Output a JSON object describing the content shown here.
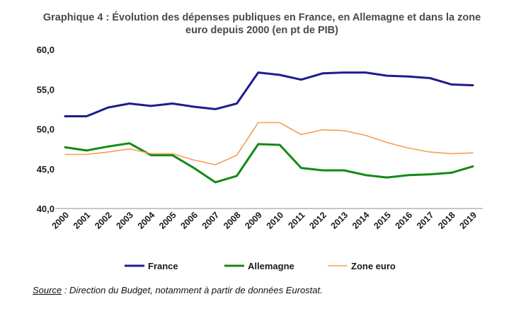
{
  "chart_data": {
    "type": "line",
    "title_line1": "Graphique 4 : Évolution des dépenses publiques en France, en Allemagne et dans la zone",
    "title_line2": "euro depuis 2000 (en pt  de PIB)",
    "categories": [
      "2000",
      "2001",
      "2002",
      "2003",
      "2004",
      "2005",
      "2006",
      "2007",
      "2008",
      "2009",
      "2010",
      "2011",
      "2012",
      "2013",
      "2014",
      "2015",
      "2016",
      "2017",
      "2018",
      "2019"
    ],
    "y_ticks": [
      "60,0",
      "55,0",
      "50,0",
      "45,0",
      "40,0"
    ],
    "ylim": [
      40,
      60
    ],
    "grid": false,
    "legend_position": "bottom",
    "series": [
      {
        "name": "France",
        "color": "#1f1b8f",
        "stroke": 3,
        "values": [
          51.6,
          51.6,
          52.7,
          53.2,
          52.9,
          53.2,
          52.8,
          52.5,
          53.2,
          57.1,
          56.8,
          56.2,
          57.0,
          57.1,
          57.1,
          56.7,
          56.6,
          56.4,
          55.6,
          55.5
        ]
      },
      {
        "name": "Allemagne",
        "color": "#138a13",
        "stroke": 3,
        "values": [
          47.7,
          47.3,
          47.8,
          48.2,
          46.7,
          46.7,
          45.1,
          43.3,
          44.1,
          48.1,
          48.0,
          45.1,
          44.8,
          44.8,
          44.2,
          43.9,
          44.2,
          44.3,
          44.5,
          45.3
        ]
      },
      {
        "name": "Zone euro",
        "color": "#f0a050",
        "stroke": 1.6,
        "values": [
          46.8,
          46.8,
          47.1,
          47.5,
          46.9,
          46.9,
          46.1,
          45.5,
          46.7,
          50.8,
          50.8,
          49.3,
          49.9,
          49.8,
          49.2,
          48.3,
          47.6,
          47.1,
          46.9,
          47.0
        ]
      }
    ]
  },
  "source": {
    "label": "Source",
    "text": " : Direction du Budget, notamment à partir de données Eurostat."
  }
}
